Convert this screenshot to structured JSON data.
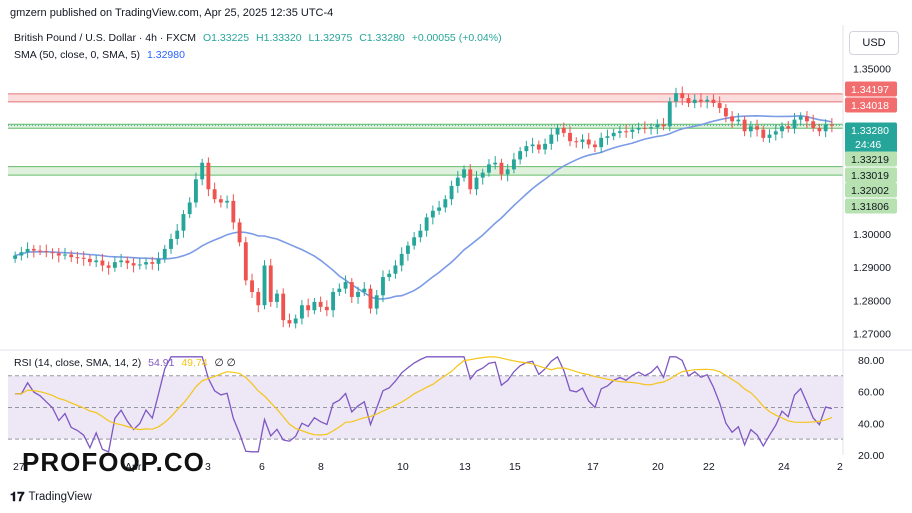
{
  "header": {
    "published": "gmzern published on TradingView.com, Apr 25, 2025 12:35 UTC-4"
  },
  "legend": {
    "symbol": "British Pound / U.S. Dollar · 4h · FXCM",
    "o": "O1.33225",
    "h": "H1.33320",
    "l": "L1.32975",
    "c": "C1.33280",
    "change": "+0.00055 (+0.04%)",
    "sma_label": "SMA (50, close, 0, SMA, 5)",
    "sma_value": "1.32980",
    "rsi_label": "RSI (14, close, SMA, 14, 2)",
    "rsi_value": "54.91",
    "rsi_value2": "49.74",
    "rsi_extra": "∅ ∅"
  },
  "currency_button": "USD",
  "branding": {
    "logo_text": "PROFOOP.CO",
    "platform": "TradingView",
    "platform_icon": "tradingview-logo-icon"
  },
  "colors": {
    "up": "#26a69a",
    "down": "#ef5350",
    "sma": "#7b9be6",
    "rsi": "#7e57c2",
    "rsi_ma": "#f5c518",
    "resistance_zone": "#f7b3b3",
    "support_zone": "#b7e1b1",
    "rsi_band": "#ede7f6"
  },
  "chart_data": [
    {
      "type": "candlestick",
      "title": "British Pound / U.S. Dollar · 4h · FXCM",
      "price_axis_ticks": [
        "1.35000",
        "1.30000",
        "1.29000",
        "1.28000",
        "1.27000"
      ],
      "ylim": [
        1.2665,
        1.3525
      ],
      "x_tick_labels": [
        "27",
        "Apr",
        "3",
        "6",
        "8",
        "10",
        "13",
        "15",
        "17",
        "20",
        "22",
        "24",
        "2"
      ],
      "price_labels": [
        {
          "value": 1.34197,
          "label": "1.34197",
          "kind": "resistance"
        },
        {
          "value": 1.34018,
          "label": "1.34018",
          "kind": "resistance"
        },
        {
          "value": 1.3328,
          "label": "1.33280",
          "kind": "last",
          "countdown": "24:46"
        },
        {
          "value": 1.33219,
          "label": "1.33219",
          "kind": "support"
        },
        {
          "value": 1.33019,
          "label": "1.33019",
          "kind": "support"
        },
        {
          "value": 1.32002,
          "label": "1.32002",
          "kind": "support"
        },
        {
          "value": 1.31806,
          "label": "1.31806",
          "kind": "support"
        }
      ],
      "zones": [
        {
          "from": 1.34018,
          "to": 1.34197,
          "kind": "resistance"
        },
        {
          "from": 1.33219,
          "to": 1.3328,
          "kind": "support"
        },
        {
          "from": 1.31806,
          "to": 1.32002,
          "kind": "support"
        }
      ],
      "close": [
        1.2935,
        1.2945,
        1.2955,
        1.295,
        1.2948,
        1.2945,
        1.2942,
        1.2935,
        1.2938,
        1.293,
        1.2928,
        1.2925,
        1.2915,
        1.292,
        1.2905,
        1.2898,
        1.2915,
        1.292,
        1.2912,
        1.2905,
        1.2908,
        1.2915,
        1.291,
        1.2925,
        1.2955,
        1.2985,
        1.301,
        1.306,
        1.3095,
        1.3165,
        1.3215,
        1.3135,
        1.3105,
        1.3095,
        1.31,
        1.3035,
        1.2975,
        1.286,
        1.2825,
        1.2785,
        1.2905,
        1.2795,
        1.282,
        1.274,
        1.273,
        1.2745,
        1.2785,
        1.277,
        1.2795,
        1.278,
        1.277,
        1.2825,
        1.2835,
        1.2855,
        1.281,
        1.2825,
        1.2835,
        1.2775,
        1.2815,
        1.287,
        1.288,
        1.2905,
        1.294,
        1.2965,
        1.299,
        1.301,
        1.305,
        1.307,
        1.308,
        1.3105,
        1.3145,
        1.317,
        1.3195,
        1.3135,
        1.317,
        1.3185,
        1.321,
        1.3215,
        1.318,
        1.3195,
        1.3225,
        1.325,
        1.3265,
        1.327,
        1.3255,
        1.3272,
        1.33,
        1.332,
        1.3305,
        1.328,
        1.3278,
        1.3285,
        1.327,
        1.3262,
        1.329,
        1.3295,
        1.3305,
        1.331,
        1.3308,
        1.3315,
        1.332,
        1.3318,
        1.3322,
        1.333,
        1.3325,
        1.34,
        1.3425,
        1.341,
        1.3395,
        1.3405,
        1.34,
        1.3405,
        1.3395,
        1.338,
        1.3355,
        1.334,
        1.3345,
        1.331,
        1.3325,
        1.3315,
        1.329,
        1.33,
        1.331,
        1.3325,
        1.3318,
        1.3345,
        1.3355,
        1.334,
        1.332,
        1.331,
        1.333,
        1.3328
      ],
      "series": [
        {
          "name": "SMA (50, close, 0, SMA, 5)",
          "last_value": 1.3298
        }
      ]
    },
    {
      "type": "line",
      "title": "RSI (14, close, SMA, 14, 2)",
      "ylim": [
        20,
        85
      ],
      "axis_ticks": [
        "80.00",
        "60.00",
        "40.00",
        "20.00"
      ],
      "levels": [
        70,
        50,
        30
      ],
      "series": [
        {
          "name": "RSI",
          "last_value": 54.91
        },
        {
          "name": "RSI SMA",
          "last_value": 49.74
        }
      ]
    }
  ]
}
